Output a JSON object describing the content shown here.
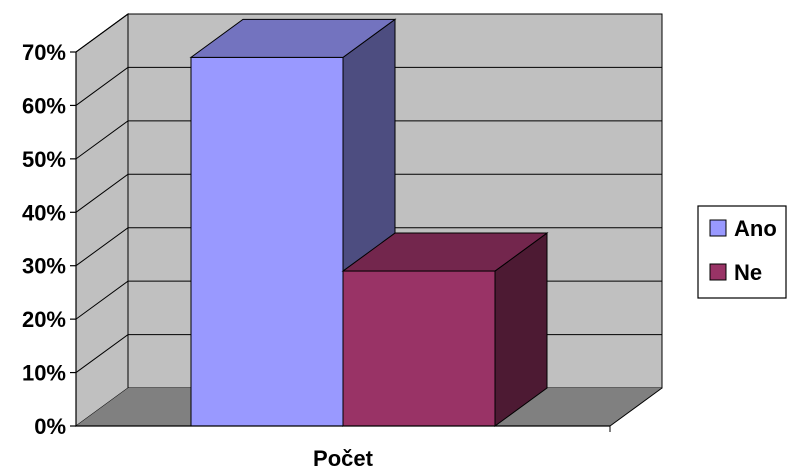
{
  "chart_data": {
    "type": "bar",
    "style": "3d-column",
    "categories": [
      "Počet"
    ],
    "series": [
      {
        "name": "Ano",
        "values": [
          0.69
        ],
        "color": "#9999FF",
        "side_color": "#4D4D80",
        "top_color": "#7373BF"
      },
      {
        "name": "Ne",
        "values": [
          0.29
        ],
        "color": "#993366",
        "side_color": "#4D1A33",
        "top_color": "#73264D"
      }
    ],
    "ylim": [
      0,
      0.7
    ],
    "yticks": [
      0,
      0.1,
      0.2,
      0.3,
      0.4,
      0.5,
      0.6,
      0.7
    ],
    "ytick_labels": [
      "0%",
      "10%",
      "20%",
      "30%",
      "40%",
      "50%",
      "60%",
      "70%"
    ],
    "grid": true,
    "legend": "right",
    "colors": {
      "wall": "#C0C0C0",
      "floor": "#808080",
      "gridline": "#000000"
    }
  }
}
